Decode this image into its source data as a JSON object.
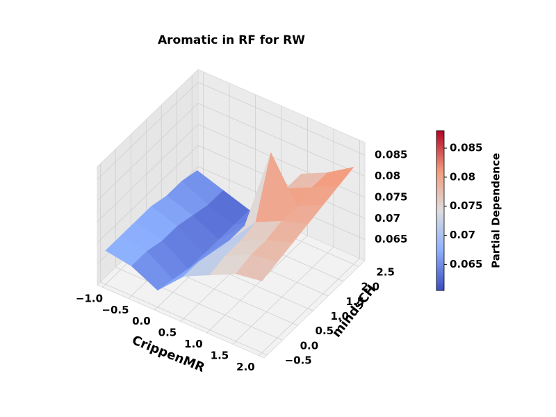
{
  "chart_data": {
    "type": "surface3d",
    "title": "Aromatic in RF for RW",
    "xlabel": "CrippenMR",
    "ylabel": "mindsCH",
    "colorbar_label": "Partial Dependence",
    "colormap": [
      "#3b4cc0",
      "#8db0fe",
      "#dddddd",
      "#f49a7b",
      "#b40426"
    ],
    "x": [
      -1.0,
      -0.5,
      0.0,
      0.5,
      1.0,
      1.5,
      2.0
    ],
    "y": [
      -0.5,
      0.0,
      0.5,
      1.0,
      1.5,
      2.0,
      2.5
    ],
    "z": [
      [
        0.068,
        0.067,
        0.064,
        0.07,
        0.073,
        0.076,
        0.077
      ],
      [
        0.068,
        0.067,
        0.063,
        0.07,
        0.074,
        0.077,
        0.078
      ],
      [
        0.068,
        0.066,
        0.062,
        0.069,
        0.074,
        0.077,
        0.079
      ],
      [
        0.068,
        0.066,
        0.062,
        0.068,
        0.075,
        0.078,
        0.08
      ],
      [
        0.067,
        0.065,
        0.062,
        0.068,
        0.088,
        0.078,
        0.081
      ],
      [
        0.067,
        0.064,
        0.062,
        0.066,
        0.076,
        0.079,
        0.082
      ],
      [
        0.066,
        0.064,
        0.062,
        0.066,
        0.076,
        0.079,
        0.083
      ]
    ],
    "xlim": [
      -1.1,
      2.1
    ],
    "ylim": [
      -0.6,
      2.7
    ],
    "zlim": [
      0.06,
      0.088
    ],
    "xticks": [
      {
        "value": -1,
        "label": "−1.0"
      },
      {
        "value": -0.5,
        "label": "−0.5"
      },
      {
        "value": 0,
        "label": "0.0"
      },
      0.5,
      {
        "value": 1,
        "label": "1.0"
      },
      1.5,
      {
        "value": 2,
        "label": "2.0"
      }
    ],
    "yticks": [
      {
        "value": -0.5,
        "label": "−0.5"
      },
      {
        "value": 0,
        "label": "0.0"
      },
      0.5,
      {
        "value": 1,
        "label": "1.0"
      },
      1.5,
      {
        "value": 2,
        "label": "2.0"
      },
      2.5
    ],
    "zticks": [
      0.065,
      0.07,
      0.075,
      0.08,
      0.085
    ],
    "clim": [
      0.0605,
      0.088
    ],
    "colorbar_ticks": [
      0.065,
      0.07,
      0.075,
      0.08,
      0.085
    ],
    "grid": true
  }
}
